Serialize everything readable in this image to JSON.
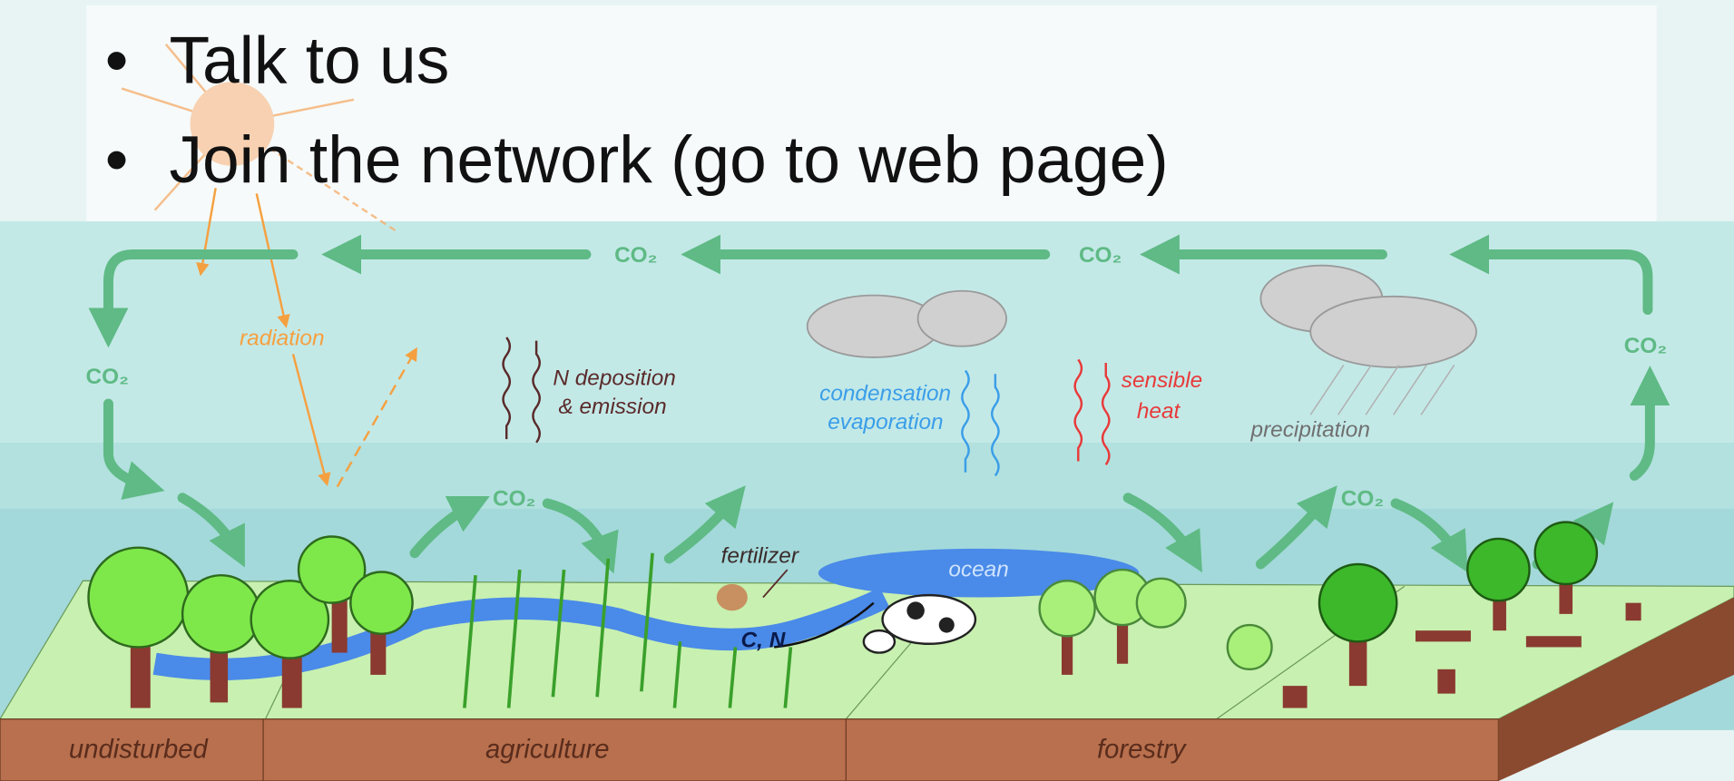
{
  "bullets": [
    "Talk to us",
    "Join the network (go to web page)"
  ],
  "diagram": {
    "co2_labels": [
      "CO₂",
      "CO₂",
      "CO₂",
      "CO₂",
      "CO₂",
      "CO₂"
    ],
    "radiation": "radiation",
    "n_deposition": [
      "N deposition",
      "& emission"
    ],
    "condensation": [
      "condensation",
      "evaporation"
    ],
    "sensible_heat": [
      "sensible",
      "heat"
    ],
    "precipitation": "precipitation",
    "fertilizer": "fertilizer",
    "ocean": "ocean",
    "c_n": "C, N",
    "zones": [
      "undisturbed",
      "agriculture",
      "forestry"
    ]
  }
}
